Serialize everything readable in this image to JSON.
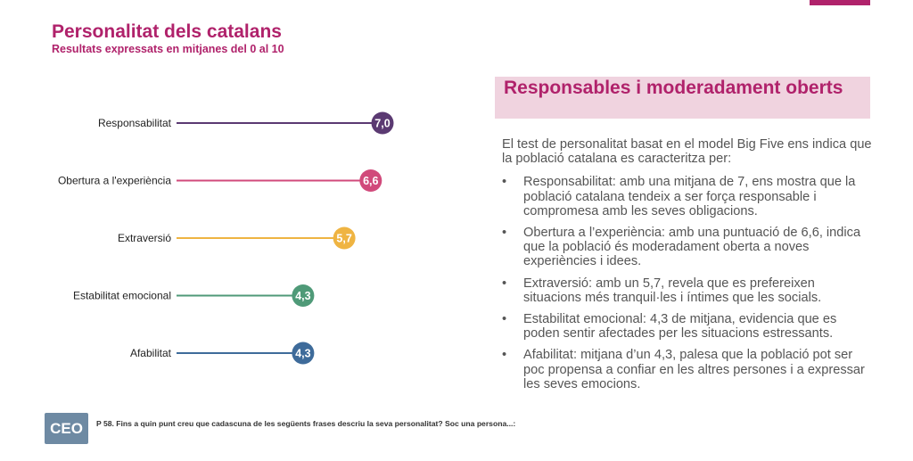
{
  "header": {
    "title": "Personalitat dels catalans",
    "subtitle": "Resultats expressats en mitjanes del 0 al 10"
  },
  "chart_data": {
    "type": "lollipop",
    "title": "",
    "xlim": [
      0,
      10
    ],
    "categories": [
      "Responsabilitat",
      "Obertura a l'experiència",
      "Extraversió",
      "Estabilitat emocional",
      "Afabilitat"
    ],
    "values": [
      7.0,
      6.6,
      5.7,
      4.3,
      4.3
    ],
    "value_labels": [
      "7,0",
      "6,6",
      "5,7",
      "4,3",
      "4,3"
    ],
    "colors": [
      "#5b3a72",
      "#d14a7b",
      "#efb442",
      "#4f9a78",
      "#3e6b9a"
    ]
  },
  "panel": {
    "heading": "Responsables i moderadament oberts",
    "intro": "El test de personalitat basat en el model Big Five ens indica que la població catalana es caracteritza per:",
    "bullet_symbol": "•",
    "bullets": [
      "Responsabilitat: amb una mitjana de 7, ens mostra que la població catalana tendeix a ser força responsable i compromesa amb les seves obligacions.",
      "Obertura a l’experiència: amb una puntuació de 6,6, indica que la població és moderadament oberta a noves experiències i idees.",
      "Extraversió: amb un 5,7, revela que es prefereixen situacions més tranquil·les i íntimes que les socials.",
      "Estabilitat emocional: 4,3 de mitjana, evidencia que es poden sentir afectades per les situacions estressants.",
      "Afabilitat: mitjana d’un 4,3, palesa que la població pot ser poc propensa a confiar en les altres persones i a expressar les seves emocions."
    ]
  },
  "footer": {
    "logo_text": "CEO",
    "note": "P 58. Fins a quin punt creu que cadascuna de les següents frases descriu la seva personalitat? Soc una persona...:"
  },
  "colors": {
    "accent": "#b0226b",
    "heading_bg": "#f0d3df",
    "logo_bg": "#6e8aa3"
  }
}
